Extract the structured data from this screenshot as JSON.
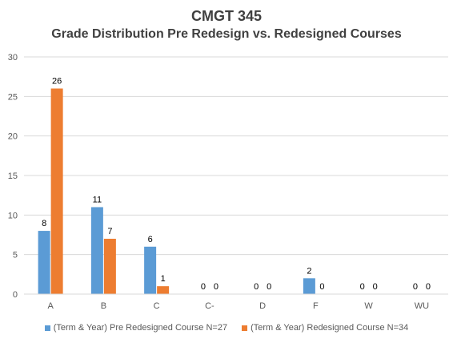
{
  "chart_data": {
    "type": "bar",
    "title": "CMGT 345",
    "subtitle": "Grade Distribution Pre Redesign vs. Redesigned Courses",
    "categories": [
      "A",
      "B",
      "C",
      "C-",
      "D",
      "F",
      "W",
      "WU"
    ],
    "series": [
      {
        "name": "(Term & Year) Pre Redesigned Course N=27",
        "color": "#5B9BD5",
        "values": [
          8,
          11,
          6,
          0,
          0,
          2,
          0,
          0
        ]
      },
      {
        "name": "(Term & Year) Redesigned Course N=34",
        "color": "#ED7D31",
        "values": [
          26,
          7,
          1,
          0,
          0,
          0,
          0,
          0
        ]
      }
    ],
    "ylim": [
      0,
      30
    ],
    "yticks": [
      0,
      5,
      10,
      15,
      20,
      25,
      30
    ],
    "grid": true,
    "legend_position": "bottom"
  }
}
